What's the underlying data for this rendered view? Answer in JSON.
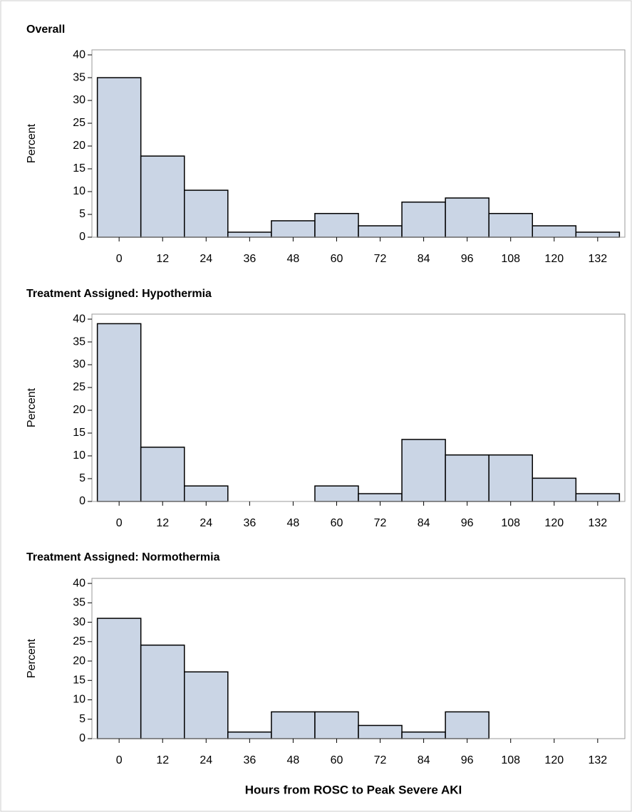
{
  "chart_data": [
    {
      "type": "histogram",
      "title": "Overall",
      "ylabel": "Percent",
      "bins": [
        -6,
        6,
        18,
        30,
        42,
        54,
        66,
        78,
        90,
        102,
        114,
        126,
        138
      ],
      "values": [
        35,
        17.8,
        10.3,
        1.1,
        3.6,
        5.2,
        2.5,
        7.7,
        8.6,
        5.2,
        2.5,
        1.1
      ],
      "color": "#cad5e5",
      "xlim": [
        -7.5,
        139.5
      ],
      "ylim": [
        0,
        41.1
      ],
      "xticks": [
        0,
        12,
        24,
        36,
        48,
        60,
        72,
        84,
        96,
        108,
        120,
        132
      ],
      "yticks": [
        0,
        5,
        10,
        15,
        20,
        25,
        30,
        35,
        40
      ]
    },
    {
      "type": "histogram",
      "title": "Treatment Assigned: Hypothermia",
      "ylabel": "Percent",
      "bins": [
        -6,
        6,
        18,
        30,
        42,
        54,
        66,
        78,
        90,
        102,
        114,
        126,
        138
      ],
      "values": [
        39,
        11.9,
        3.4,
        0,
        0,
        3.4,
        1.7,
        13.6,
        10.2,
        10.2,
        5.1,
        1.7
      ],
      "color": "#cad5e5",
      "xlim": [
        -7.5,
        139.5
      ],
      "ylim": [
        0,
        41.1
      ],
      "xticks": [
        0,
        12,
        24,
        36,
        48,
        60,
        72,
        84,
        96,
        108,
        120,
        132
      ],
      "yticks": [
        0,
        5,
        10,
        15,
        20,
        25,
        30,
        35,
        40
      ]
    },
    {
      "type": "histogram",
      "title": "Treatment Assigned: Normothermia",
      "ylabel": "Percent",
      "xlabel": "Hours from ROSC to Peak Severe AKI",
      "bins": [
        -6,
        6,
        18,
        30,
        42,
        54,
        66,
        78,
        90,
        102,
        114,
        126,
        138
      ],
      "values": [
        31,
        24.1,
        17.2,
        1.7,
        6.9,
        6.9,
        3.4,
        1.7,
        6.9,
        0,
        0,
        0
      ],
      "color": "#cad5e5",
      "xlim": [
        -7.5,
        139.5
      ],
      "ylim": [
        0,
        41.3
      ],
      "xticks": [
        0,
        12,
        24,
        36,
        48,
        60,
        72,
        84,
        96,
        108,
        120,
        132
      ],
      "yticks": [
        0,
        5,
        10,
        15,
        20,
        25,
        30,
        35,
        40
      ]
    }
  ]
}
